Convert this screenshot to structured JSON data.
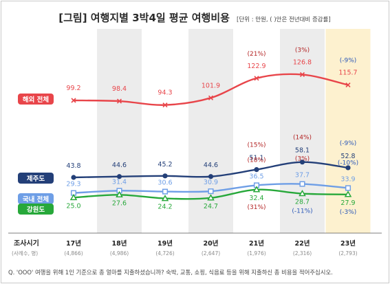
{
  "chart_data": {
    "type": "line",
    "title": "[그림] 여행지별 3박4일 평균 여행비용",
    "note": "[단위 : 만원, ( )안은 전년대비 증감률]",
    "x_header": "조사시기",
    "x_sub_header": "(사례수, 명)",
    "categories": [
      "17년",
      "18년",
      "19년",
      "20년",
      "21년",
      "22년",
      "23년"
    ],
    "sample_sizes": [
      "(4,866)",
      "(4,986)",
      "(4,726)",
      "(2,647)",
      "(1,976)",
      "(2,316)",
      "(2,793)"
    ],
    "series": [
      {
        "name": "해외 전체",
        "color": "#e8454a",
        "marker": "x",
        "values": [
          99.2,
          98.4,
          94.3,
          101.9,
          122.9,
          126.8,
          115.7
        ],
        "changes": [
          null,
          null,
          null,
          null,
          "(21%)",
          "(3%)",
          "(-9%)"
        ]
      },
      {
        "name": "제주도",
        "color": "#233f78",
        "marker": "dot",
        "values": [
          43.8,
          44.6,
          45.2,
          44.6,
          51.1,
          58.1,
          52.8
        ],
        "changes": [
          null,
          null,
          null,
          null,
          "(15%)",
          "(14%)",
          "(-9%)"
        ]
      },
      {
        "name": "국내 전체",
        "color": "#6e9ee6",
        "marker": "square",
        "values": [
          29.3,
          31.4,
          30.6,
          30.9,
          36.5,
          37.7,
          33.9
        ],
        "changes": [
          null,
          null,
          null,
          null,
          "(18%)",
          "(3%)",
          "(-10%)"
        ]
      },
      {
        "name": "강원도",
        "color": "#27a83a",
        "marker": "triangle",
        "values": [
          25.0,
          27.6,
          24.2,
          24.7,
          32.4,
          28.7,
          27.9
        ],
        "changes": [
          null,
          null,
          null,
          null,
          "(31%)",
          "(-11%)",
          "(-3%)"
        ]
      }
    ],
    "footnote": "Q. 'OOO' 여행을 위해 1인 기준으로 총 얼마를 지출하셨습니까? 숙박, 교통, 쇼핑, 식음료 등을 위해 지출하신 총 비용을 적어주십시오.",
    "colors": {
      "shade": "#ececec",
      "highlight": "#fdf1cf",
      "change_positive": "#b32424",
      "change_negative": "#2a57b8"
    }
  }
}
